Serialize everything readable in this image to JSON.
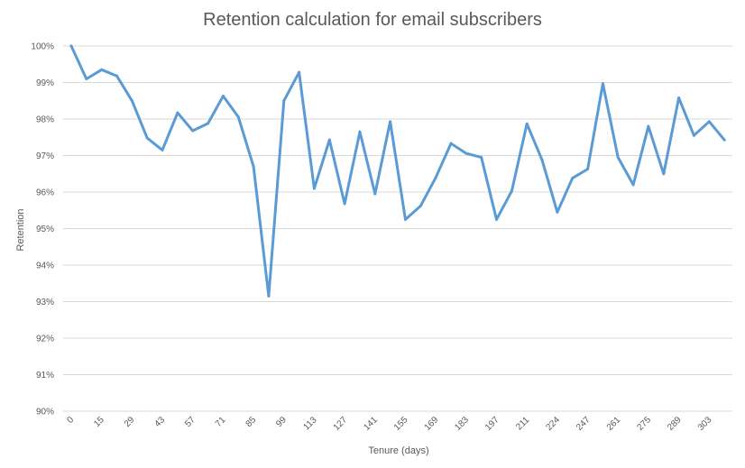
{
  "chart_data": {
    "type": "line",
    "title": "Retention calculation for email subscribers",
    "xlabel": "Tenure (days)",
    "ylabel": "Retention",
    "ylim": [
      0.9,
      1.0
    ],
    "y_ticks": [
      0.9,
      0.91,
      0.92,
      0.93,
      0.94,
      0.95,
      0.96,
      0.97,
      0.98,
      0.99,
      1.0
    ],
    "y_tick_labels": [
      "90%",
      "91%",
      "92%",
      "93%",
      "94%",
      "95%",
      "96%",
      "97%",
      "98%",
      "99%",
      "100%"
    ],
    "x_tick_labels": [
      "0",
      "15",
      "29",
      "43",
      "57",
      "71",
      "85",
      "99",
      "113",
      "127",
      "141",
      "155",
      "169",
      "183",
      "197",
      "211",
      "224",
      "247",
      "261",
      "275",
      "289",
      "303"
    ],
    "grid": true,
    "legend": "none",
    "series": [
      {
        "color": "#5b9bd5",
        "values": [
          1.0,
          0.991,
          0.9935,
          0.9918,
          0.985,
          0.9748,
          0.9715,
          0.9817,
          0.9768,
          0.9788,
          0.9863,
          0.9806,
          0.967,
          0.9315,
          0.985,
          0.9928,
          0.961,
          0.9743,
          0.9568,
          0.9765,
          0.9595,
          0.9793,
          0.9525,
          0.9562,
          0.964,
          0.9733,
          0.9706,
          0.9695,
          0.9525,
          0.9603,
          0.9787,
          0.9688,
          0.9545,
          0.9638,
          0.9663,
          0.9897,
          0.9695,
          0.962,
          0.978,
          0.965,
          0.9858,
          0.9755,
          0.9793,
          0.9743
        ]
      }
    ]
  }
}
